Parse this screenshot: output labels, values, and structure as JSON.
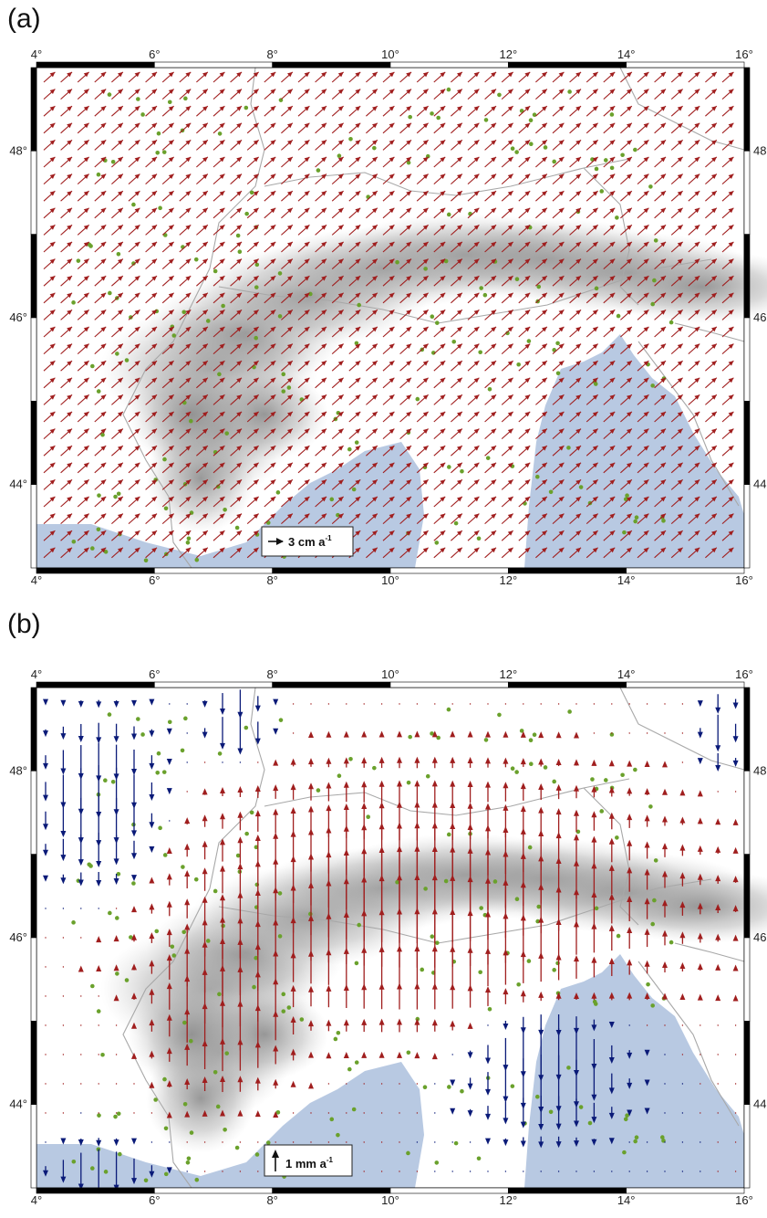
{
  "colors": {
    "upward": "#a01e1e",
    "downward": "#0a1a78",
    "horizontal": "#a01e1e",
    "station": "#6aa12c",
    "sea": "#b8c9e2",
    "land": "#ececec",
    "relief_dark": "#8c8c8c",
    "border": "#a8a8a8"
  },
  "panels": [
    {
      "label": "(a)",
      "type": "horizontal-velocity-field",
      "x_ticks": [
        "4°",
        "6°",
        "8°",
        "10°",
        "12°",
        "14°",
        "16°"
      ],
      "y_ticks": [
        "44°",
        "46°",
        "48°"
      ],
      "y_ticks_right": [
        "44",
        "46",
        "48"
      ],
      "lon_range": [
        4,
        16
      ],
      "lat_range": [
        43,
        49
      ],
      "legend": {
        "text": "3 cm a",
        "sup": "-1",
        "arrow_direction": "east"
      }
    },
    {
      "label": "(b)",
      "type": "vertical-velocity-field",
      "x_ticks": [
        "4°",
        "6°",
        "8°",
        "10°",
        "12°",
        "14°",
        "16°"
      ],
      "y_ticks": [
        "44°",
        "46°",
        "48°"
      ],
      "y_ticks_right": [
        "44",
        "46",
        "48"
      ],
      "lon_range": [
        4,
        16
      ],
      "lat_range": [
        43,
        49
      ],
      "legend": {
        "text": "1 mm a",
        "sup": "-1",
        "arrow_direction": "north"
      }
    }
  ]
}
